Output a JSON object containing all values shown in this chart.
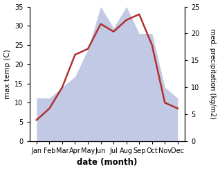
{
  "months": [
    "Jan",
    "Feb",
    "Mar",
    "Apr",
    "May",
    "Jun",
    "Jul",
    "Aug",
    "Sep",
    "Oct",
    "Nov",
    "Dec"
  ],
  "temperature": [
    5.5,
    8.5,
    14.0,
    22.5,
    24.0,
    30.5,
    28.5,
    31.5,
    33.0,
    25.0,
    10.0,
    8.5
  ],
  "precipitation": [
    8,
    8,
    10,
    12,
    17,
    25,
    21,
    25,
    20,
    20,
    10,
    8
  ],
  "temp_color": "#b03030",
  "precip_color": "#b8c0e0",
  "temp_ylim": [
    0,
    35
  ],
  "precip_ylim_max": 25,
  "precip_yticks": [
    0,
    5,
    10,
    15,
    20,
    25
  ],
  "temp_yticks": [
    0,
    5,
    10,
    15,
    20,
    25,
    30,
    35
  ],
  "xlabel": "date (month)",
  "ylabel_left": "max temp (C)",
  "ylabel_right": "med. precipitation (kg/m2)",
  "bg_color": "#ffffff",
  "line_width": 1.8
}
